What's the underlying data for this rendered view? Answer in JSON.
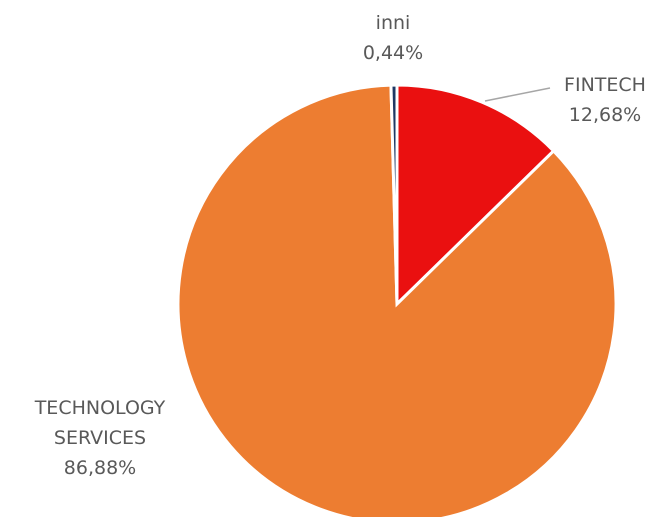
{
  "chart_data": {
    "type": "pie",
    "categories": [
      "FINTECH",
      "TECHNOLOGY SERVICES",
      "inni"
    ],
    "values": [
      12.68,
      86.88,
      0.44
    ],
    "value_labels": [
      "12,68%",
      "86,88%",
      "0,44%"
    ],
    "colors": [
      "#ea1010",
      "#ed7d31",
      "#1f3864"
    ]
  }
}
